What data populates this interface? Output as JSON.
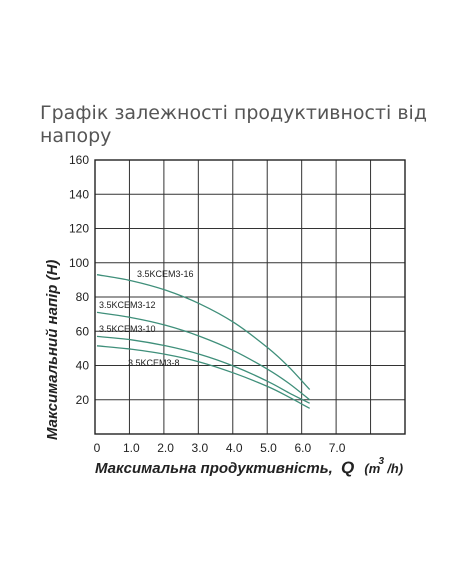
{
  "page": {
    "title": "Графік залежності продуктивності від напору"
  },
  "chart_data": {
    "type": "line",
    "title": "Графік залежності продуктивності від напору",
    "xlabel_main": "Максимальна продуктивність,",
    "xlabel_q": "Q",
    "xlabel_unit_open": "(m",
    "xlabel_unit_sup": "3",
    "xlabel_unit_close": "/h)",
    "ylabel": "Максимальний напір (H)",
    "xlim": [
      0,
      9
    ],
    "ylim": [
      0,
      160
    ],
    "grid": true,
    "x_ticks": [
      "0",
      "1.0",
      "2.0",
      "3.0",
      "4.0",
      "5.0",
      "6.0",
      "7.0"
    ],
    "y_ticks": [
      "20",
      "40",
      "60",
      "80",
      "100",
      "120",
      "140",
      "160"
    ],
    "series": [
      {
        "name": "3.5KCEM3-16",
        "color": "#3f8f7a",
        "x": [
          0,
          1,
          2,
          3,
          4,
          5,
          5.6,
          6.2
        ],
        "y": [
          93,
          89.5,
          84,
          76,
          65,
          50,
          39,
          26
        ]
      },
      {
        "name": "3.5KCEM3-12",
        "color": "#3f8f7a",
        "x": [
          0,
          1,
          2,
          3,
          4,
          5,
          5.6,
          6.2
        ],
        "y": [
          71,
          68,
          63.5,
          57,
          48.5,
          37.5,
          29.5,
          20
        ]
      },
      {
        "name": "3.5KCEM3-10",
        "color": "#3f8f7a",
        "x": [
          0,
          1,
          2,
          3,
          4,
          5,
          5.6,
          6.2
        ],
        "y": [
          57,
          55,
          51.5,
          46.5,
          39.5,
          30.5,
          24,
          18
        ]
      },
      {
        "name": "3.5KCEM3-8",
        "color": "#3f8f7a",
        "x": [
          0,
          1,
          2,
          3,
          4,
          5,
          5.6,
          6.2
        ],
        "y": [
          51.5,
          49.5,
          46.5,
          42,
          35.5,
          27.5,
          21.5,
          15
        ]
      }
    ]
  }
}
